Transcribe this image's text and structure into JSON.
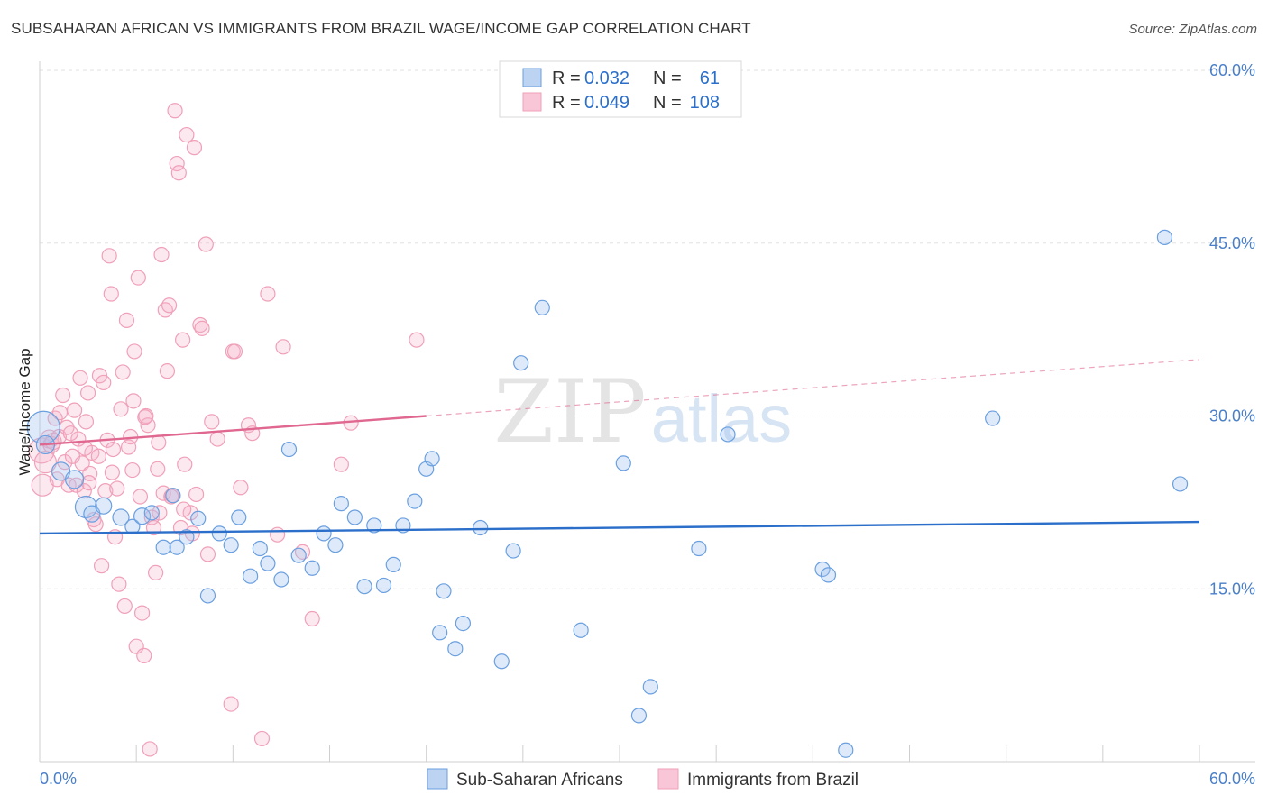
{
  "header": {
    "title": "SUBSAHARAN AFRICAN VS IMMIGRANTS FROM BRAZIL WAGE/INCOME GAP CORRELATION CHART",
    "source": "Source: ZipAtlas.com"
  },
  "watermark": {
    "zip": "ZIP",
    "atlas": "atlas"
  },
  "legend": {
    "rows": [
      {
        "r_label": "R =",
        "r_value": "0.032",
        "n_label": "N =",
        "n_value": "61"
      },
      {
        "r_label": "R =",
        "r_value": "0.049",
        "n_label": "N =",
        "n_value": "108"
      }
    ]
  },
  "bottom_legend": [
    "Sub-Saharan Africans",
    "Immigrants from Brazil"
  ],
  "chart_data": {
    "type": "scatter",
    "title": "SUBSAHARAN AFRICAN VS IMMIGRANTS FROM BRAZIL WAGE/INCOME GAP CORRELATION CHART",
    "xlabel": "",
    "ylabel": "Wage/Income Gap",
    "xlim": [
      0,
      60
    ],
    "ylim": [
      0,
      60
    ],
    "x_tick_labels": [
      "0.0%",
      "60.0%"
    ],
    "y_tick_labels": [
      "15.0%",
      "30.0%",
      "45.0%",
      "60.0%"
    ],
    "y_ticks": [
      15,
      30,
      45,
      60
    ],
    "colors": {
      "blue": "#6a9fe0",
      "blue_line": "#2b6fca",
      "pink": "#f0a0b8",
      "pink_line": "#e06890",
      "tick": "#4a7fc8"
    },
    "series": [
      {
        "name": "Sub-Saharan Africans",
        "color": "blue",
        "trend": {
          "x": [
            0,
            60
          ],
          "y": [
            19.8,
            20.8
          ]
        },
        "points": [
          [
            0.2,
            29.0,
            18
          ],
          [
            0.3,
            27.5,
            10
          ],
          [
            1.1,
            25.2,
            10
          ],
          [
            1.8,
            24.5,
            10
          ],
          [
            2.4,
            22.1,
            12
          ],
          [
            2.7,
            21.5,
            9
          ],
          [
            3.3,
            22.2,
            9
          ],
          [
            4.2,
            21.2,
            9
          ],
          [
            4.8,
            20.4,
            8
          ],
          [
            5.3,
            21.3,
            9
          ],
          [
            5.8,
            21.6,
            8
          ],
          [
            6.4,
            18.6,
            8
          ],
          [
            6.9,
            23.1,
            8
          ],
          [
            7.1,
            18.6,
            8
          ],
          [
            7.6,
            19.5,
            8
          ],
          [
            8.2,
            21.1,
            8
          ],
          [
            8.7,
            14.4,
            8
          ],
          [
            9.3,
            19.8,
            8
          ],
          [
            9.9,
            18.8,
            8
          ],
          [
            10.3,
            21.2,
            8
          ],
          [
            10.9,
            16.1,
            8
          ],
          [
            11.4,
            18.5,
            8
          ],
          [
            11.8,
            17.2,
            8
          ],
          [
            12.5,
            15.8,
            8
          ],
          [
            12.9,
            27.1,
            8
          ],
          [
            13.4,
            17.9,
            8
          ],
          [
            14.1,
            16.8,
            8
          ],
          [
            14.7,
            19.8,
            8
          ],
          [
            15.3,
            18.8,
            8
          ],
          [
            15.6,
            22.4,
            8
          ],
          [
            16.3,
            21.2,
            8
          ],
          [
            16.8,
            15.2,
            8
          ],
          [
            17.3,
            20.5,
            8
          ],
          [
            17.8,
            15.3,
            8
          ],
          [
            18.3,
            17.1,
            8
          ],
          [
            18.8,
            20.5,
            8
          ],
          [
            19.4,
            22.6,
            8
          ],
          [
            20.0,
            25.4,
            8
          ],
          [
            20.3,
            26.3,
            8
          ],
          [
            20.9,
            14.8,
            8
          ],
          [
            20.7,
            11.2,
            8
          ],
          [
            21.5,
            9.8,
            8
          ],
          [
            21.9,
            12.0,
            8
          ],
          [
            22.8,
            20.3,
            8
          ],
          [
            23.9,
            8.7,
            8
          ],
          [
            24.5,
            18.3,
            8
          ],
          [
            24.9,
            34.6,
            8
          ],
          [
            26.0,
            39.4,
            8
          ],
          [
            28.0,
            11.4,
            8
          ],
          [
            30.2,
            25.9,
            8
          ],
          [
            31.6,
            6.5,
            8
          ],
          [
            31.0,
            4.0,
            8
          ],
          [
            34.1,
            18.5,
            8
          ],
          [
            35.6,
            28.4,
            8
          ],
          [
            40.5,
            16.7,
            8
          ],
          [
            40.8,
            16.2,
            8
          ],
          [
            41.7,
            1.0,
            8
          ],
          [
            49.3,
            29.8,
            8
          ],
          [
            58.2,
            45.5,
            8
          ],
          [
            59.0,
            24.1,
            8
          ]
        ]
      },
      {
        "name": "Immigrants from Brazil",
        "color": "pink",
        "trend": {
          "x": [
            0,
            20
          ],
          "y": [
            27.5,
            30.0
          ]
        },
        "trend_dashed": {
          "x": [
            20,
            60
          ],
          "y": [
            30.0,
            34.9
          ]
        },
        "points": [
          [
            0.1,
            27.0,
            14
          ],
          [
            0.15,
            24.0,
            12
          ],
          [
            0.3,
            26.0,
            12
          ],
          [
            0.5,
            28.0,
            10
          ],
          [
            0.6,
            27.5,
            9
          ],
          [
            0.8,
            29.8,
            8
          ],
          [
            0.9,
            24.5,
            8
          ],
          [
            1.0,
            28.2,
            8
          ],
          [
            1.2,
            31.8,
            8
          ],
          [
            1.3,
            26.0,
            8
          ],
          [
            1.4,
            29.0,
            8
          ],
          [
            1.5,
            24.0,
            8
          ],
          [
            1.7,
            26.5,
            8
          ],
          [
            1.8,
            30.5,
            8
          ],
          [
            1.9,
            24.0,
            8
          ],
          [
            2.0,
            28.0,
            8
          ],
          [
            2.1,
            33.3,
            8
          ],
          [
            2.2,
            25.9,
            8
          ],
          [
            2.3,
            23.5,
            8
          ],
          [
            2.4,
            29.5,
            8
          ],
          [
            2.5,
            32.0,
            8
          ],
          [
            2.6,
            25.0,
            8
          ],
          [
            2.7,
            26.8,
            8
          ],
          [
            2.8,
            21.0,
            8
          ],
          [
            2.9,
            20.6,
            8
          ],
          [
            3.1,
            33.5,
            8
          ],
          [
            3.2,
            17.0,
            8
          ],
          [
            3.3,
            32.9,
            8
          ],
          [
            3.4,
            23.5,
            8
          ],
          [
            3.5,
            27.9,
            8
          ],
          [
            3.6,
            43.9,
            8
          ],
          [
            3.7,
            40.6,
            8
          ],
          [
            3.8,
            27.1,
            8
          ],
          [
            3.9,
            19.5,
            8
          ],
          [
            4.0,
            23.7,
            8
          ],
          [
            4.1,
            15.4,
            8
          ],
          [
            4.2,
            30.6,
            8
          ],
          [
            4.3,
            33.8,
            8
          ],
          [
            4.4,
            13.5,
            8
          ],
          [
            4.5,
            38.3,
            8
          ],
          [
            4.6,
            27.3,
            8
          ],
          [
            4.7,
            28.2,
            8
          ],
          [
            4.8,
            25.3,
            8
          ],
          [
            4.9,
            35.6,
            8
          ],
          [
            5.0,
            10.0,
            8
          ],
          [
            5.1,
            42.0,
            8
          ],
          [
            5.2,
            23.0,
            8
          ],
          [
            5.3,
            12.9,
            8
          ],
          [
            5.4,
            9.2,
            8
          ],
          [
            5.5,
            30.0,
            8
          ],
          [
            5.6,
            29.2,
            8
          ],
          [
            5.7,
            1.1,
            8
          ],
          [
            5.8,
            21.2,
            8
          ],
          [
            5.9,
            20.3,
            8
          ],
          [
            6.0,
            16.4,
            8
          ],
          [
            6.1,
            25.4,
            8
          ],
          [
            6.2,
            21.6,
            8
          ],
          [
            6.3,
            44.0,
            8
          ],
          [
            6.4,
            23.3,
            8
          ],
          [
            6.5,
            39.2,
            8
          ],
          [
            6.6,
            33.9,
            8
          ],
          [
            6.7,
            39.6,
            8
          ],
          [
            6.8,
            23.0,
            8
          ],
          [
            7.0,
            56.5,
            8
          ],
          [
            7.1,
            51.9,
            8
          ],
          [
            7.2,
            51.1,
            8
          ],
          [
            7.3,
            20.3,
            8
          ],
          [
            7.4,
            36.6,
            8
          ],
          [
            7.5,
            25.8,
            8
          ],
          [
            7.6,
            54.4,
            8
          ],
          [
            7.8,
            21.6,
            8
          ],
          [
            7.9,
            19.8,
            8
          ],
          [
            8.0,
            53.3,
            8
          ],
          [
            8.1,
            23.2,
            8
          ],
          [
            8.3,
            37.9,
            8
          ],
          [
            8.4,
            37.6,
            8
          ],
          [
            8.6,
            44.9,
            8
          ],
          [
            8.7,
            18.0,
            8
          ],
          [
            8.9,
            29.5,
            8
          ],
          [
            9.2,
            28.0,
            8
          ],
          [
            9.9,
            5.0,
            8
          ],
          [
            10.0,
            35.6,
            8
          ],
          [
            10.1,
            35.6,
            8
          ],
          [
            10.4,
            23.8,
            8
          ],
          [
            10.8,
            29.2,
            8
          ],
          [
            11.0,
            28.5,
            8
          ],
          [
            11.5,
            2.0,
            8
          ],
          [
            11.8,
            40.6,
            8
          ],
          [
            12.3,
            19.7,
            8
          ],
          [
            12.6,
            36.0,
            8
          ],
          [
            13.6,
            18.2,
            8
          ],
          [
            14.1,
            12.4,
            8
          ],
          [
            15.6,
            25.8,
            8
          ],
          [
            16.1,
            29.4,
            8
          ],
          [
            19.5,
            36.6,
            8
          ],
          [
            0.7,
            27.8,
            9
          ],
          [
            1.6,
            28.5,
            8
          ],
          [
            2.55,
            24.2,
            8
          ],
          [
            3.05,
            26.5,
            8
          ],
          [
            3.75,
            25.1,
            8
          ],
          [
            4.85,
            31.3,
            8
          ],
          [
            5.45,
            29.9,
            8
          ],
          [
            6.15,
            27.7,
            8
          ],
          [
            6.85,
            23.1,
            8
          ],
          [
            7.45,
            21.9,
            8
          ],
          [
            2.35,
            27.2,
            8
          ],
          [
            1.05,
            30.3,
            8
          ]
        ]
      }
    ]
  }
}
